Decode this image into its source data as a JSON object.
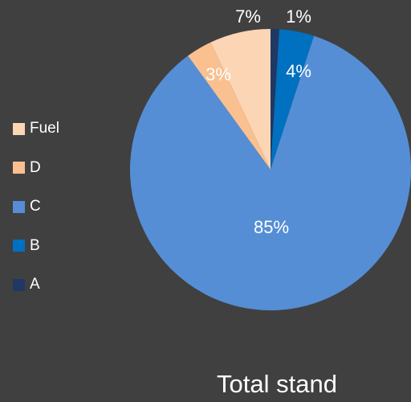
{
  "chart_data": {
    "type": "pie",
    "title": "Total stand",
    "legend_position": "left",
    "slices": [
      {
        "label": "A",
        "value": 1,
        "data_label": "1%",
        "color": "#1F3864"
      },
      {
        "label": "B",
        "value": 4,
        "data_label": "4%",
        "color": "#0070C0"
      },
      {
        "label": "C",
        "value": 85,
        "data_label": "85%",
        "color": "#558ED5"
      },
      {
        "label": "D",
        "value": 3,
        "data_label": "3%",
        "color": "#FAC090"
      },
      {
        "label": "Fuel",
        "value": 7,
        "data_label": "7%",
        "color": "#FCD5B5"
      }
    ],
    "legend_order": [
      "Fuel",
      "D",
      "C",
      "B",
      "A"
    ]
  }
}
